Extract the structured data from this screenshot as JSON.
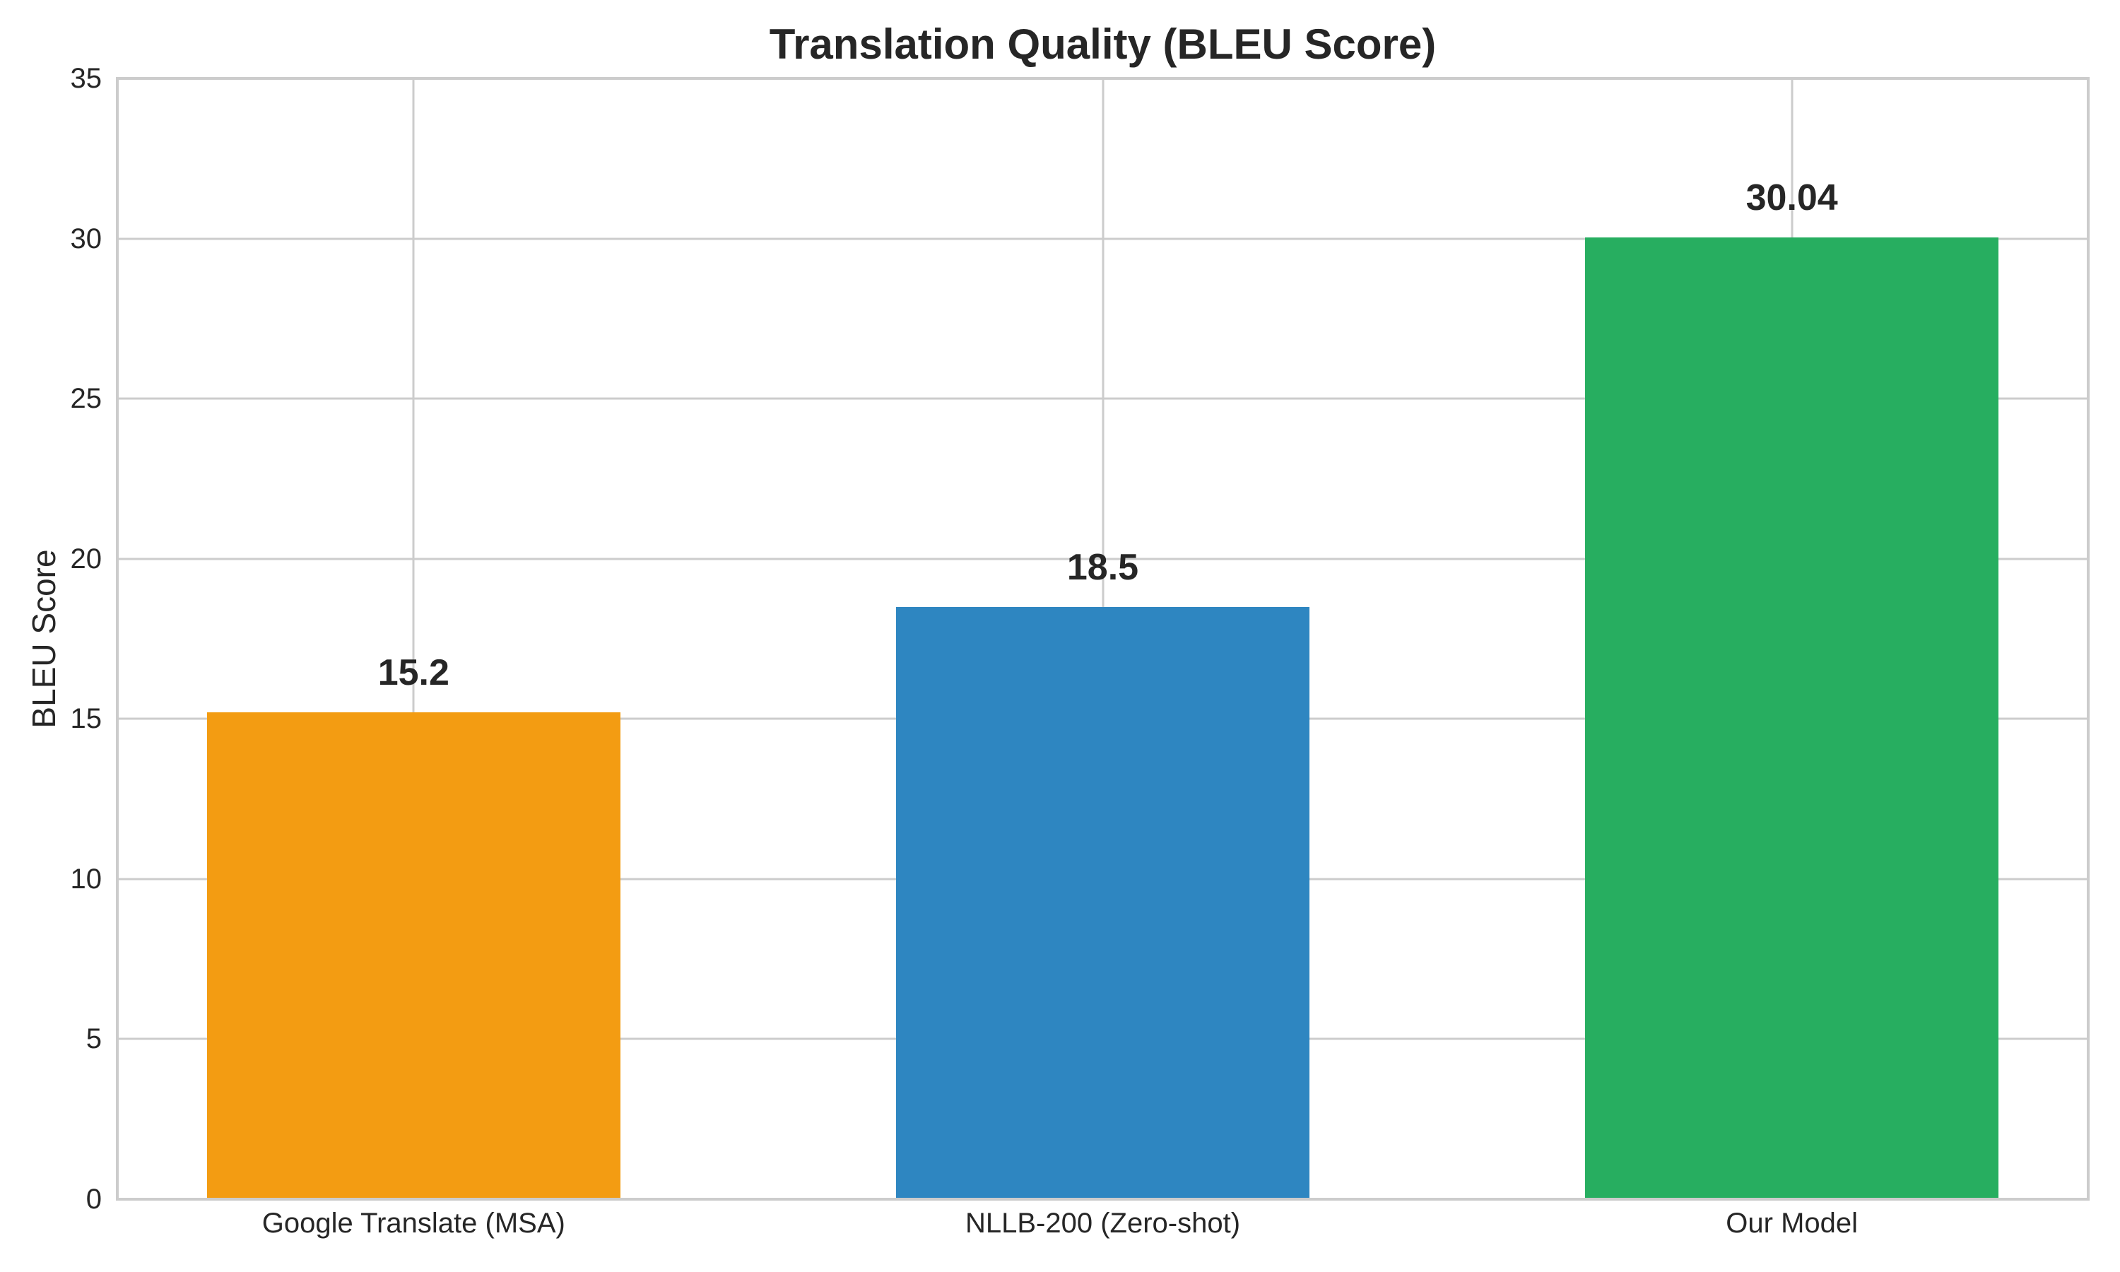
{
  "figure": {
    "background_color": "#ffffff",
    "text_color": "#262626",
    "grid_color": "#cccccc",
    "axis_color": "#cccccc"
  },
  "chart_data": {
    "type": "bar",
    "title": "Translation Quality (BLEU Score)",
    "xlabel": "",
    "ylabel": "BLEU Score",
    "categories": [
      "Google Translate (MSA)",
      "NLLB-200 (Zero-shot)",
      "Our Model"
    ],
    "values": [
      15.2,
      18.5,
      30.04
    ],
    "value_labels": [
      "15.2",
      "18.5",
      "30.04"
    ],
    "bar_colors": [
      "#F39C12",
      "#2E86C1",
      "#27AE60"
    ],
    "ylim": [
      0,
      35
    ],
    "yticks": [
      0,
      5,
      10,
      15,
      20,
      25,
      30,
      35
    ],
    "grid": "both",
    "legend": "none"
  }
}
